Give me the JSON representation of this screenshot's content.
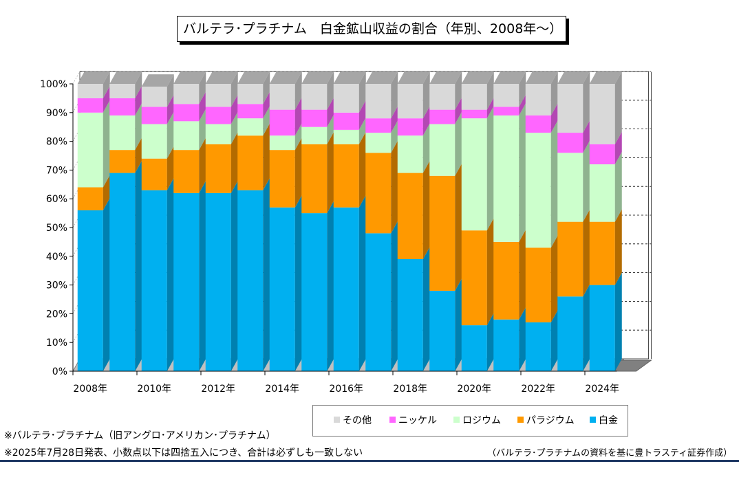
{
  "title": "バルテラ･プラチナム　白金鉱山収益の割合（年別、2008年～）",
  "notes": [
    "※バルテラ･プラチナム（旧アングロ･アメリカン･プラチナム）",
    "※2025年7月28日発表、小数点以下は四捨五入につき、合計は必ずしも一致しない"
  ],
  "source": "（バルテラ･プラチナムの資料を基に豊トラスティ証券作成）",
  "legend": [
    {
      "label": "その他",
      "color": "#d9d9d9"
    },
    {
      "label": "ニッケル",
      "color": "#ff66ff"
    },
    {
      "label": "ロジウム",
      "color": "#ccffcc"
    },
    {
      "label": "パラジウム",
      "color": "#ff9900"
    },
    {
      "label": "白金",
      "color": "#00b0f0"
    }
  ],
  "chart_data": {
    "type": "bar",
    "stacked": true,
    "percent": true,
    "categories": [
      "2008年",
      "2009年",
      "2010年",
      "2011年",
      "2012年",
      "2013年",
      "2014年",
      "2015年",
      "2016年",
      "2017年",
      "2018年",
      "2019年",
      "2020年",
      "2021年",
      "2022年",
      "2023年",
      "2024年"
    ],
    "x_tick_labels": [
      "2008年",
      "",
      "2010年",
      "",
      "2012年",
      "",
      "2014年",
      "",
      "2016年",
      "",
      "2018年",
      "",
      "2020年",
      "",
      "2022年",
      "",
      "2024年"
    ],
    "y_tick_labels": [
      "0%",
      "10%",
      "20%",
      "30%",
      "40%",
      "50%",
      "60%",
      "70%",
      "80%",
      "90%",
      "100%"
    ],
    "ylim": [
      0,
      100
    ],
    "grid": true,
    "legend_position": "bottom",
    "series": [
      {
        "name": "白金",
        "color": "#00b0f0",
        "side": "#0080b0",
        "values": [
          56,
          69,
          63,
          62,
          62,
          63,
          57,
          55,
          57,
          48,
          39,
          28,
          16,
          18,
          17,
          26,
          30
        ]
      },
      {
        "name": "パラジウム",
        "color": "#ff9900",
        "side": "#b36b00",
        "values": [
          8,
          8,
          11,
          15,
          17,
          19,
          20,
          24,
          22,
          28,
          30,
          40,
          33,
          27,
          26,
          26,
          22
        ]
      },
      {
        "name": "ロジウム",
        "color": "#ccffcc",
        "side": "#8fb38f",
        "values": [
          26,
          12,
          12,
          10,
          7,
          6,
          5,
          6,
          5,
          7,
          13,
          18,
          39,
          44,
          40,
          24,
          20
        ]
      },
      {
        "name": "ニッケル",
        "color": "#ff66ff",
        "side": "#b347b3",
        "values": [
          5,
          6,
          6,
          6,
          6,
          5,
          9,
          6,
          6,
          5,
          6,
          5,
          3,
          3,
          6,
          7,
          7
        ]
      },
      {
        "name": "その他",
        "color": "#d9d9d9",
        "side": "#999999",
        "values": [
          5,
          5,
          7,
          7,
          8,
          7,
          9,
          9,
          10,
          12,
          12,
          9,
          9,
          8,
          11,
          17,
          21
        ]
      }
    ]
  }
}
